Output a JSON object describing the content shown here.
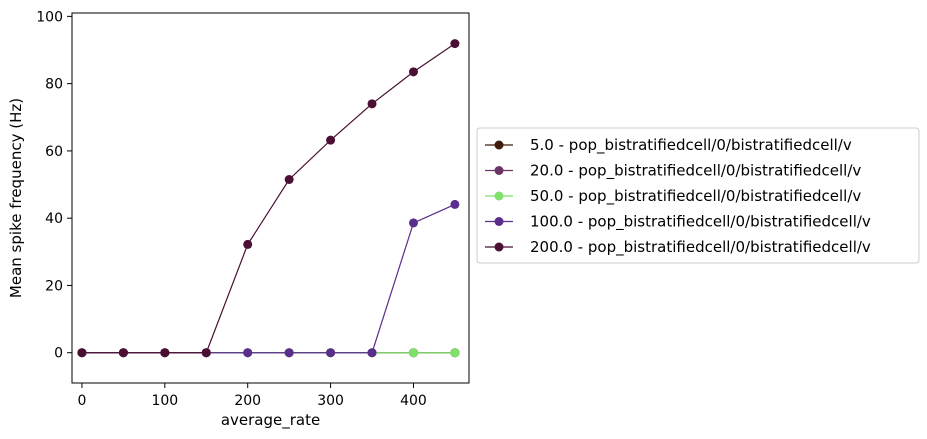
{
  "chart_data": {
    "type": "line",
    "title": "",
    "xlabel": "average_rate",
    "ylabel": "Mean spike frequency (Hz)",
    "xlim": [
      -12,
      467
    ],
    "ylim": [
      -9,
      101
    ],
    "xticks": [
      0,
      100,
      200,
      300,
      400
    ],
    "yticks": [
      0,
      20,
      40,
      60,
      80,
      100
    ],
    "grid": false,
    "legend_position": "center-right-outside",
    "series": [
      {
        "name": "5.0 - pop_bistratifiedcell/0/bistratifiedcell/v",
        "color": "#3d1c0e",
        "x": [
          0,
          50,
          100,
          150,
          200,
          250,
          300,
          350,
          400,
          450
        ],
        "y": [
          0,
          0,
          0,
          0,
          0,
          0,
          0,
          0,
          0,
          0
        ]
      },
      {
        "name": "20.0 - pop_bistratifiedcell/0/bistratifiedcell/v",
        "color": "#6b3466",
        "x": [
          0,
          50,
          100,
          150,
          200,
          250,
          300,
          350,
          400,
          450
        ],
        "y": [
          0,
          0,
          0,
          0,
          0,
          0,
          0,
          0,
          0,
          0
        ]
      },
      {
        "name": "50.0 - pop_bistratifiedcell/0/bistratifiedcell/v",
        "color": "#7ee26a",
        "x": [
          0,
          50,
          100,
          150,
          200,
          250,
          300,
          350,
          400,
          450
        ],
        "y": [
          0,
          0,
          0,
          0,
          0,
          0,
          0,
          0,
          0,
          0
        ]
      },
      {
        "name": "100.0 - pop_bistratifiedcell/0/bistratifiedcell/v",
        "color": "#5a2e8c",
        "x": [
          0,
          50,
          100,
          150,
          200,
          250,
          300,
          350,
          400,
          450
        ],
        "y": [
          0,
          0,
          0,
          0,
          0,
          0,
          0,
          0,
          38.6,
          44.1
        ]
      },
      {
        "name": "200.0 - pop_bistratifiedcell/0/bistratifiedcell/v",
        "color": "#4a0f33",
        "x": [
          0,
          50,
          100,
          150,
          200,
          250,
          300,
          350,
          400,
          450
        ],
        "y": [
          0,
          0,
          0,
          0,
          32.2,
          51.5,
          63.2,
          74.0,
          83.5,
          91.9
        ]
      }
    ]
  }
}
